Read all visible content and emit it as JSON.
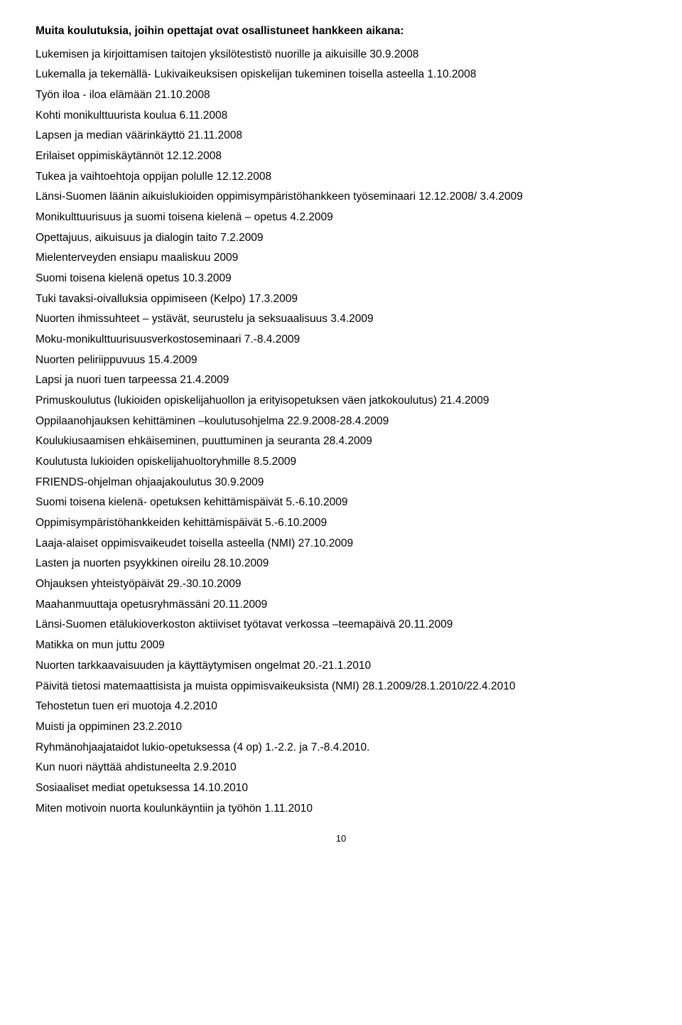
{
  "heading": "Muita koulutuksia, joihin opettajat ovat osallistuneet  hankkeen aikana:",
  "lines": [
    "Lukemisen ja kirjoittamisen taitojen yksilötestistö nuorille ja aikuisille 30.9.2008",
    "Lukemalla ja tekemällä- Lukivaikeuksisen opiskelijan tukeminen toisella asteella 1.10.2008",
    "Työn iloa - iloa elämään 21.10.2008",
    "Kohti monikulttuurista koulua 6.11.2008",
    "Lapsen ja median väärinkäyttö 21.11.2008",
    "Erilaiset oppimiskäytännöt 12.12.2008",
    "Tukea ja vaihtoehtoja oppijan polulle 12.12.2008",
    "Länsi-Suomen läänin aikuislukioiden oppimisympäristöhankkeen työseminaari 12.12.2008/ 3.4.2009",
    "Monikulttuurisuus ja suomi toisena kielenä – opetus 4.2.2009",
    "Opettajuus, aikuisuus ja dialogin taito 7.2.2009",
    "Mielenterveyden ensiapu maaliskuu 2009",
    "Suomi toisena kielenä opetus 10.3.2009",
    "Tuki tavaksi-oivalluksia oppimiseen (Kelpo) 17.3.2009",
    "Nuorten ihmissuhteet – ystävät, seurustelu ja seksuaalisuus 3.4.2009",
    "Moku-monikulttuurisuusverkostoseminaari 7.-8.4.2009",
    "Nuorten peliriippuvuus 15.4.2009",
    "Lapsi ja nuori tuen tarpeessa 21.4.2009",
    "Primuskoulutus (lukioiden opiskelijahuollon ja erityisopetuksen väen jatkokoulutus) 21.4.2009",
    "Oppilaanohjauksen kehittäminen –koulutusohjelma 22.9.2008-28.4.2009",
    "Koulukiusaamisen ehkäiseminen, puuttuminen ja seuranta 28.4.2009",
    "Koulutusta lukioiden opiskelijahuoltoryhmille 8.5.2009",
    "FRIENDS-ohjelman ohjaajakoulutus 30.9.2009",
    "Suomi toisena kielenä- opetuksen kehittämispäivät 5.-6.10.2009",
    "Oppimisympäristöhankkeiden kehittämispäivät 5.-6.10.2009",
    "Laaja-alaiset oppimisvaikeudet toisella asteella (NMI) 27.10.2009",
    "Lasten ja nuorten psyykkinen oireilu 28.10.2009",
    "Ohjauksen yhteistyöpäivät 29.-30.10.2009",
    "Maahanmuuttaja opetusryhmässäni 20.11.2009",
    "Länsi-Suomen etälukioverkoston aktiiviset työtavat verkossa –teemapäivä 20.11.2009",
    "Matikka on mun juttu 2009",
    "Nuorten tarkkaavaisuuden ja käyttäytymisen ongelmat 20.-21.1.2010",
    "Päivitä tietosi matemaattisista ja muista oppimisvaikeuksista (NMI) 28.1.2009/28.1.2010/22.4.2010",
    "Tehostetun tuen eri muotoja 4.2.2010",
    "Muisti ja oppiminen 23.2.2010",
    "Ryhmänohjaajataidot lukio-opetuksessa (4 op) 1.-2.2. ja 7.-8.4.2010.",
    "Kun nuori näyttää ahdistuneelta 2.9.2010",
    "Sosiaaliset mediat opetuksessa 14.10.2010",
    "Miten motivoin nuorta koulunkäyntiin ja työhön 1.11.2010"
  ],
  "page_number": "10"
}
